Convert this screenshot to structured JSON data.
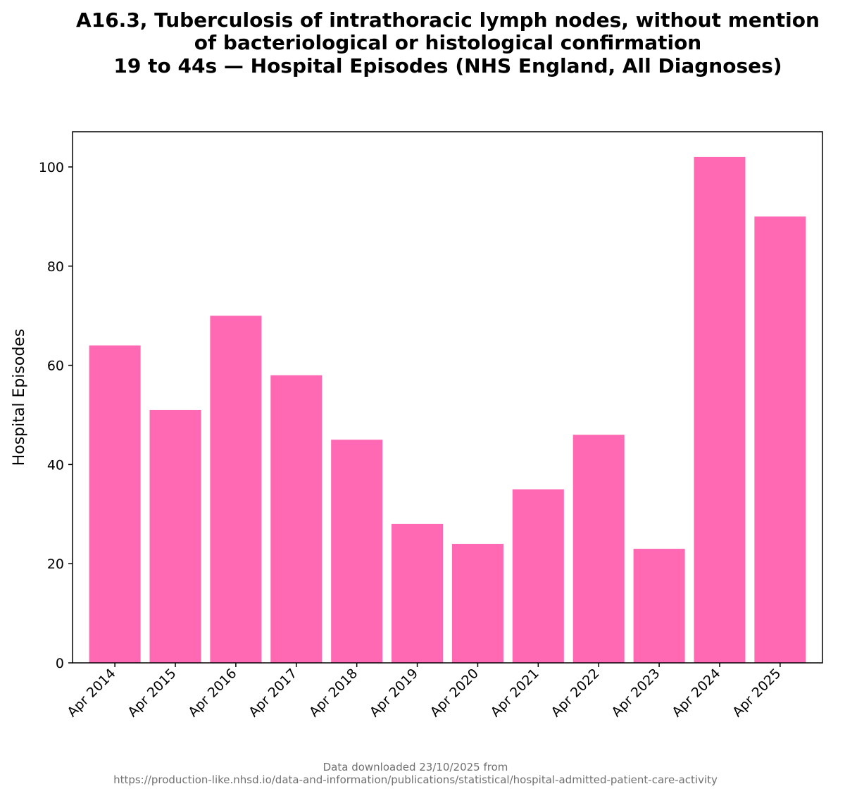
{
  "chart_data": {
    "type": "bar",
    "title_lines": [
      "A16.3, Tuberculosis of intrathoracic lymph nodes, without mention",
      "of bacteriological or histological confirmation",
      "19 to 44s — Hospital Episodes (NHS England, All Diagnoses)"
    ],
    "xlabel": "",
    "ylabel": "Hospital Episodes",
    "categories": [
      "Apr 2014",
      "Apr 2015",
      "Apr 2016",
      "Apr 2017",
      "Apr 2018",
      "Apr 2019",
      "Apr 2020",
      "Apr 2021",
      "Apr 2022",
      "Apr 2023",
      "Apr 2024",
      "Apr 2025"
    ],
    "values": [
      64,
      51,
      70,
      58,
      45,
      28,
      24,
      35,
      46,
      23,
      102,
      90
    ],
    "ylim": [
      0,
      107.1
    ],
    "yticks": [
      0,
      20,
      40,
      60,
      80,
      100
    ],
    "bar_color": "#ff69b4",
    "grid": false,
    "legend": "none"
  },
  "footer": {
    "line1": "Data downloaded 23/10/2025 from",
    "line2": "https://production-like.nhsd.io/data-and-information/publications/statistical/hospital-admitted-patient-care-activity"
  }
}
